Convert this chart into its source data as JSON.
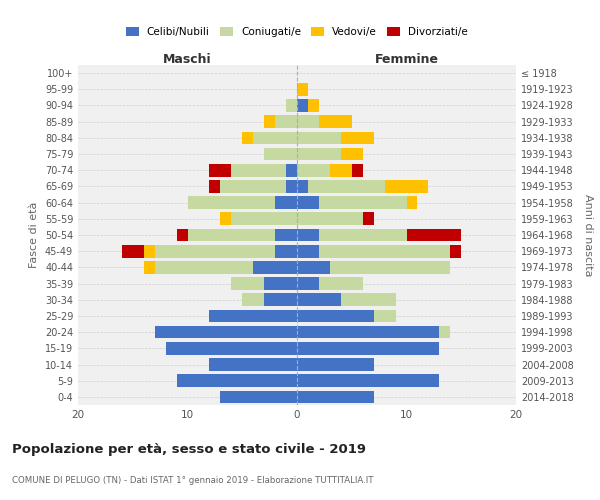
{
  "age_groups": [
    "0-4",
    "5-9",
    "10-14",
    "15-19",
    "20-24",
    "25-29",
    "30-34",
    "35-39",
    "40-44",
    "45-49",
    "50-54",
    "55-59",
    "60-64",
    "65-69",
    "70-74",
    "75-79",
    "80-84",
    "85-89",
    "90-94",
    "95-99",
    "100+"
  ],
  "birth_years": [
    "2014-2018",
    "2009-2013",
    "2004-2008",
    "1999-2003",
    "1994-1998",
    "1989-1993",
    "1984-1988",
    "1979-1983",
    "1974-1978",
    "1969-1973",
    "1964-1968",
    "1959-1963",
    "1954-1958",
    "1949-1953",
    "1944-1948",
    "1939-1943",
    "1934-1938",
    "1929-1933",
    "1924-1928",
    "1919-1923",
    "≤ 1918"
  ],
  "maschi": {
    "celibi": [
      7,
      11,
      8,
      12,
      13,
      8,
      3,
      3,
      4,
      2,
      2,
      0,
      2,
      1,
      1,
      0,
      0,
      0,
      0,
      0,
      0
    ],
    "coniugati": [
      0,
      0,
      0,
      0,
      0,
      0,
      2,
      3,
      9,
      11,
      8,
      6,
      8,
      6,
      5,
      3,
      4,
      2,
      1,
      0,
      0
    ],
    "vedovi": [
      0,
      0,
      0,
      0,
      0,
      0,
      0,
      0,
      1,
      1,
      0,
      1,
      0,
      0,
      0,
      0,
      1,
      1,
      0,
      0,
      0
    ],
    "divorziati": [
      0,
      0,
      0,
      0,
      0,
      0,
      0,
      0,
      0,
      2,
      1,
      0,
      0,
      1,
      2,
      0,
      0,
      0,
      0,
      0,
      0
    ]
  },
  "femmine": {
    "nubili": [
      7,
      13,
      7,
      13,
      13,
      7,
      4,
      2,
      3,
      2,
      2,
      0,
      2,
      1,
      0,
      0,
      0,
      0,
      1,
      0,
      0
    ],
    "coniugate": [
      0,
      0,
      0,
      0,
      1,
      2,
      5,
      4,
      11,
      12,
      8,
      6,
      8,
      7,
      3,
      4,
      4,
      2,
      0,
      0,
      0
    ],
    "vedove": [
      0,
      0,
      0,
      0,
      0,
      0,
      0,
      0,
      0,
      0,
      0,
      0,
      1,
      4,
      2,
      2,
      3,
      3,
      1,
      1,
      0
    ],
    "divorziate": [
      0,
      0,
      0,
      0,
      0,
      0,
      0,
      0,
      0,
      1,
      5,
      1,
      0,
      0,
      1,
      0,
      0,
      0,
      0,
      0,
      0
    ]
  },
  "colors": {
    "celibi": "#4472c4",
    "coniugati": "#c5d9a0",
    "vedovi": "#ffc000",
    "divorziati": "#c00000"
  },
  "title": "Popolazione per età, sesso e stato civile - 2019",
  "subtitle": "COMUNE DI PELUGO (TN) - Dati ISTAT 1° gennaio 2019 - Elaborazione TUTTITALIA.IT",
  "xlabel_left": "Maschi",
  "xlabel_right": "Femmine",
  "ylabel_left": "Fasce di età",
  "ylabel_right": "Anni di nascita",
  "xlim": 20,
  "legend_labels": [
    "Celibi/Nubili",
    "Coniugati/e",
    "Vedovi/e",
    "Divorziati/e"
  ],
  "bg_color": "#f0f0f0"
}
